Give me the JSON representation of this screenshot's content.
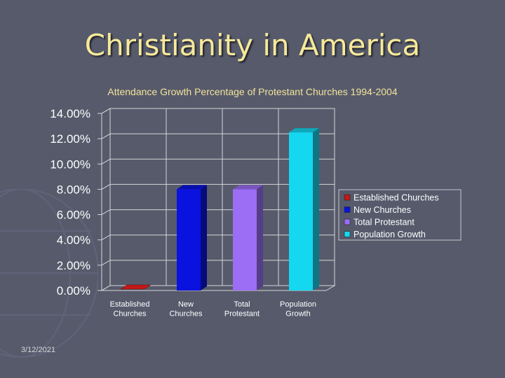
{
  "slide": {
    "title": "Christianity in America",
    "date": "3/12/2021"
  },
  "chart_data": {
    "type": "bar",
    "title": "Attendance Growth Percentage of Protestant Churches 1994-2004",
    "categories": [
      "Established Churches",
      "New Churches",
      "Total Protestant",
      "Population Growth"
    ],
    "category_lines": [
      [
        "Established",
        "Churches"
      ],
      [
        "New",
        "Churches"
      ],
      [
        "Total",
        "Protestant"
      ],
      [
        "Population",
        "Growth"
      ]
    ],
    "values": [
      -0.5,
      8.0,
      8.0,
      12.5
    ],
    "colors": [
      "#c41818",
      "#0a12e0",
      "#9b6ef5",
      "#15d7f0"
    ],
    "ylim": [
      0,
      14
    ],
    "yticks": [
      "0.00%",
      "2.00%",
      "4.00%",
      "6.00%",
      "8.00%",
      "10.00%",
      "12.00%",
      "14.00%"
    ],
    "xlabel": "",
    "ylabel": "",
    "legend": [
      "Established Churches",
      "New Churches",
      "Total Protestant",
      "Population Growth"
    ],
    "legend_position": "right"
  }
}
